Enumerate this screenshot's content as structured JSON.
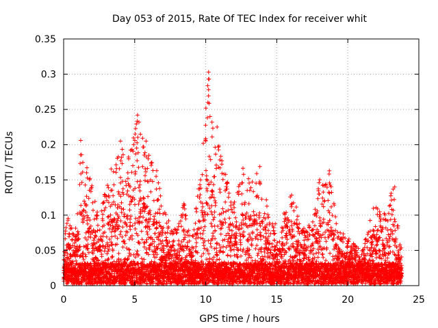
{
  "chart_data": {
    "type": "scatter",
    "title": "Day 053 of 2015, Rate Of TEC Index for receiver whit",
    "xlabel": "GPS time / hours",
    "ylabel": "ROTI / TECUs",
    "xlim": [
      0,
      25
    ],
    "ylim": [
      0,
      0.35
    ],
    "xticks": [
      0,
      5,
      10,
      15,
      20,
      25
    ],
    "xtick_labels": [
      "0",
      "5",
      "10",
      "15",
      "20",
      "25"
    ],
    "yticks": [
      0,
      0.05,
      0.1,
      0.15,
      0.2,
      0.25,
      0.3,
      0.35
    ],
    "ytick_labels": [
      "0",
      "0.05",
      "0.1",
      "0.15",
      "0.2",
      "0.25",
      "0.3",
      "0.35"
    ],
    "grid": true,
    "marker": "+",
    "marker_color": "#ff0000",
    "series": [
      {
        "name": "ROTI",
        "density_envelope": [
          {
            "x": 0.0,
            "y": 0.06
          },
          {
            "x": 0.3,
            "y": 0.1
          },
          {
            "x": 0.8,
            "y": 0.07
          },
          {
            "x": 1.2,
            "y": 0.19
          },
          {
            "x": 1.8,
            "y": 0.16
          },
          {
            "x": 2.5,
            "y": 0.1
          },
          {
            "x": 3.0,
            "y": 0.14
          },
          {
            "x": 3.5,
            "y": 0.19
          },
          {
            "x": 4.0,
            "y": 0.2
          },
          {
            "x": 4.5,
            "y": 0.18
          },
          {
            "x": 5.2,
            "y": 0.24
          },
          {
            "x": 5.8,
            "y": 0.2
          },
          {
            "x": 6.5,
            "y": 0.17
          },
          {
            "x": 7.0,
            "y": 0.11
          },
          {
            "x": 7.5,
            "y": 0.09
          },
          {
            "x": 8.0,
            "y": 0.08
          },
          {
            "x": 8.5,
            "y": 0.12
          },
          {
            "x": 9.0,
            "y": 0.06
          },
          {
            "x": 9.5,
            "y": 0.15
          },
          {
            "x": 10.2,
            "y": 0.3
          },
          {
            "x": 10.6,
            "y": 0.22
          },
          {
            "x": 11.2,
            "y": 0.18
          },
          {
            "x": 11.8,
            "y": 0.12
          },
          {
            "x": 12.3,
            "y": 0.14
          },
          {
            "x": 12.7,
            "y": 0.18
          },
          {
            "x": 13.3,
            "y": 0.15
          },
          {
            "x": 13.8,
            "y": 0.17
          },
          {
            "x": 14.5,
            "y": 0.1
          },
          {
            "x": 15.2,
            "y": 0.08
          },
          {
            "x": 16.0,
            "y": 0.14
          },
          {
            "x": 16.8,
            "y": 0.08
          },
          {
            "x": 17.5,
            "y": 0.09
          },
          {
            "x": 18.0,
            "y": 0.15
          },
          {
            "x": 18.7,
            "y": 0.16
          },
          {
            "x": 19.3,
            "y": 0.08
          },
          {
            "x": 20.0,
            "y": 0.07
          },
          {
            "x": 20.5,
            "y": 0.06
          },
          {
            "x": 21.0,
            "y": 0.05
          },
          {
            "x": 21.8,
            "y": 0.12
          },
          {
            "x": 22.5,
            "y": 0.1
          },
          {
            "x": 23.2,
            "y": 0.14
          },
          {
            "x": 23.7,
            "y": 0.06
          }
        ],
        "x_range": [
          0,
          23.8
        ],
        "notable_points": [
          {
            "x": 10.2,
            "y": 0.303
          },
          {
            "x": 10.2,
            "y": 0.293
          },
          {
            "x": 10.2,
            "y": 0.278
          },
          {
            "x": 5.2,
            "y": 0.242
          },
          {
            "x": 5.3,
            "y": 0.232
          },
          {
            "x": 10.3,
            "y": 0.24
          },
          {
            "x": 1.2,
            "y": 0.206
          },
          {
            "x": 4.0,
            "y": 0.205
          },
          {
            "x": 5.8,
            "y": 0.205
          },
          {
            "x": 10.8,
            "y": 0.225
          },
          {
            "x": 18.7,
            "y": 0.163
          },
          {
            "x": 23.3,
            "y": 0.14
          }
        ]
      }
    ]
  }
}
